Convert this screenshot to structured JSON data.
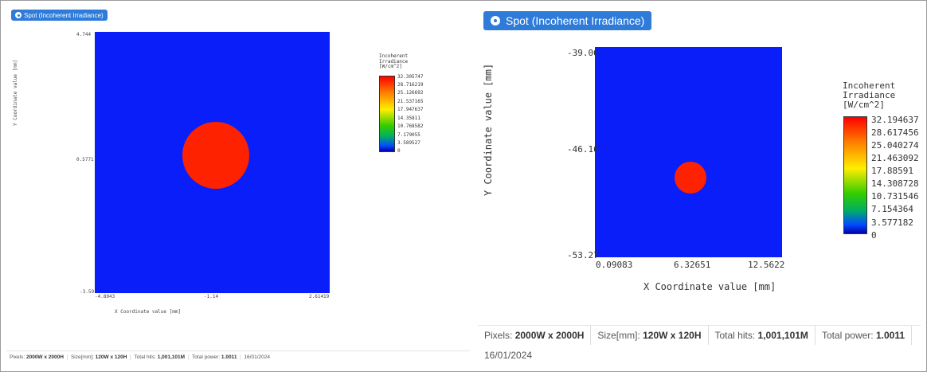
{
  "colors": {
    "accent": "#2f7bd9",
    "plot_background": "#0a1efa",
    "spot": "#ff2200"
  },
  "panels": [
    {
      "button": {
        "label": "Spot (Incoherent Irradiance)",
        "icon": "target-icon"
      },
      "x_ticks": [
        "-4.8943",
        "-1.14",
        "2.61419"
      ],
      "y_ticks": [
        "4.744",
        "0.5771",
        "-3.59"
      ],
      "x_label": "X Coordinate value [mm]",
      "y_label": "Y Coordinate value [mm]",
      "colorbar_title": [
        "Incoherent",
        "Irradiance",
        "[W/cm^2]"
      ],
      "colorbar_labels": [
        "32.305747",
        "28.716219",
        "25.126692",
        "21.537165",
        "17.947637",
        "14.35811",
        "10.768582",
        "7.179055",
        "3.589527",
        "0"
      ],
      "footer": {
        "pixels_label": "Pixels:",
        "pixels_value": "2000W x 2000H",
        "size_label": "Size[mm]:",
        "size_value": "120W x 120H",
        "hits_label": "Total hits:",
        "hits_value": "1,001,101M",
        "power_label": "Total power:",
        "power_value": "1.0011",
        "date": "16/01/2024"
      }
    },
    {
      "button": {
        "label": "Spot (Incoherent Irradiance)",
        "icon": "target-icon"
      },
      "x_ticks": [
        "0.09083",
        "6.32651",
        "12.5622"
      ],
      "y_ticks": [
        "-39.06",
        "-46.16",
        "-53.27"
      ],
      "x_label": "X Coordinate value [mm]",
      "y_label": "Y Coordinate value [mm]",
      "colorbar_title": [
        "Incoherent",
        "Irradiance",
        "[W/cm^2]"
      ],
      "colorbar_labels": [
        "32.194637",
        "28.617456",
        "25.040274",
        "21.463092",
        "17.88591",
        "14.308728",
        "10.731546",
        "7.154364",
        "3.577182",
        "0"
      ],
      "footer": {
        "pixels_label": "Pixels:",
        "pixels_value": "2000W x 2000H",
        "size_label": "Size[mm]:",
        "size_value": "120W x 120H",
        "hits_label": "Total hits:",
        "hits_value": "1,001,101M",
        "power_label": "Total power:",
        "power_value": "1.0011",
        "date": "16/01/2024"
      }
    }
  ]
}
